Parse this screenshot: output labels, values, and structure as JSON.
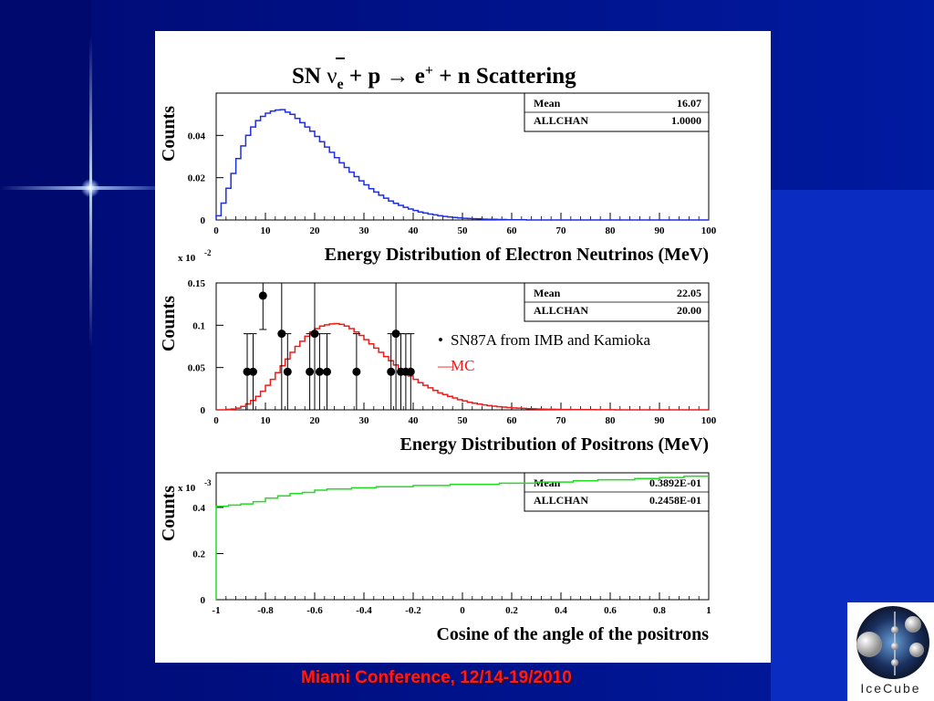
{
  "slide": {
    "footer": "Miami Conference, 12/14-19/2010",
    "logo_text": "IceCube"
  },
  "colors": {
    "background": "#000a6e",
    "footer_text": "#ff1a1a",
    "blue_hist": "#1f2fe0",
    "red_hist": "#ee1b1b",
    "green_hist": "#22dd22"
  },
  "chart_data": [
    {
      "type": "line",
      "title": "SN ν̄e + p → e+ + n Scattering",
      "xlabel": "Energy Distribution of Electron Neutrinos (MeV)",
      "ylabel": "Counts",
      "xlim": [
        0,
        100
      ],
      "ylim": [
        0,
        0.06
      ],
      "x_ticks": [
        "0",
        "10",
        "20",
        "30",
        "40",
        "50",
        "60",
        "70",
        "80",
        "90",
        "100"
      ],
      "y_ticks": [
        "0",
        "0.02",
        "0.04"
      ],
      "stats": [
        {
          "label": "Mean",
          "value": "16.07"
        },
        {
          "label": "ALLCHAN",
          "value": "1.0000"
        }
      ],
      "series": [
        {
          "style": "histogram",
          "color": "#1f2fe0",
          "bin_width": 1,
          "values": [
            0.002,
            0.008,
            0.015,
            0.022,
            0.029,
            0.035,
            0.04,
            0.044,
            0.047,
            0.049,
            0.0505,
            0.0515,
            0.052,
            0.0522,
            0.051,
            0.05,
            0.048,
            0.046,
            0.044,
            0.042,
            0.0395,
            0.037,
            0.0345,
            0.032,
            0.0295,
            0.027,
            0.0248,
            0.0226,
            0.0205,
            0.0185,
            0.0166,
            0.0148,
            0.0132,
            0.0117,
            0.0103,
            0.009,
            0.0079,
            0.0069,
            0.006,
            0.0052,
            0.0045,
            0.0038,
            0.0033,
            0.0028,
            0.0024,
            0.002,
            0.0017,
            0.0014,
            0.0012,
            0.001,
            0.0008,
            0.0007,
            0.0006,
            0.0005,
            0.0004,
            0.0003,
            0.0003,
            0.0002,
            0.0002,
            0.0001,
            0.0001,
            0.0001,
            0.0001,
            0,
            0,
            0,
            0,
            0,
            0,
            0,
            0,
            0,
            0,
            0,
            0,
            0,
            0,
            0,
            0,
            0,
            0,
            0,
            0,
            0,
            0,
            0,
            0,
            0,
            0,
            0,
            0,
            0,
            0,
            0,
            0,
            0,
            0,
            0,
            0,
            0
          ]
        }
      ]
    },
    {
      "type": "line",
      "xlabel": "Energy Distribution of Positrons (MeV)",
      "ylabel": "Counts",
      "y_multiplier": "x 10",
      "y_multiplier_exp": "-2",
      "xlim": [
        0,
        100
      ],
      "ylim": [
        0,
        0.15
      ],
      "x_ticks": [
        "0",
        "10",
        "20",
        "30",
        "40",
        "50",
        "60",
        "70",
        "80",
        "90",
        "100"
      ],
      "y_ticks": [
        "0",
        "0.05",
        "0.1",
        "0.15"
      ],
      "stats": [
        {
          "label": "Mean",
          "value": "22.05"
        },
        {
          "label": "ALLCHAN",
          "value": "20.00"
        }
      ],
      "legend": [
        {
          "marker": "•",
          "label": "SN87A from IMB and Kamioka",
          "color": "#000000"
        },
        {
          "marker": "—",
          "label": "MC",
          "color": "#ee1b1b"
        }
      ],
      "series": [
        {
          "name": "MC",
          "style": "histogram",
          "color": "#ee1b1b",
          "bin_width": 1,
          "values": [
            0,
            0,
            0.0005,
            0.001,
            0.002,
            0.004,
            0.007,
            0.011,
            0.016,
            0.022,
            0.029,
            0.036,
            0.044,
            0.052,
            0.06,
            0.068,
            0.075,
            0.081,
            0.087,
            0.092,
            0.096,
            0.099,
            0.1005,
            0.1015,
            0.102,
            0.101,
            0.099,
            0.096,
            0.092,
            0.088,
            0.083,
            0.078,
            0.073,
            0.068,
            0.063,
            0.058,
            0.053,
            0.048,
            0.044,
            0.04,
            0.036,
            0.032,
            0.029,
            0.026,
            0.023,
            0.02,
            0.018,
            0.016,
            0.014,
            0.012,
            0.0105,
            0.009,
            0.0078,
            0.0067,
            0.0058,
            0.005,
            0.0043,
            0.0037,
            0.0032,
            0.0027,
            0.0023,
            0.002,
            0.0017,
            0.0014,
            0.0012,
            0.001,
            0.0009,
            0.0007,
            0.0006,
            0.0005,
            0.0004,
            0.0004,
            0.0003,
            0.0003,
            0.0002,
            0.0002,
            0.0002,
            0.0001,
            0.0001,
            0.0001,
            0.0001,
            0,
            0,
            0,
            0,
            0,
            0,
            0,
            0,
            0,
            0,
            0,
            0,
            0,
            0,
            0,
            0,
            0,
            0,
            0
          ]
        },
        {
          "name": "SN87A from IMB and Kamioka",
          "style": "points",
          "color": "#000000",
          "points": [
            {
              "x": 6.3,
              "y": 0.045,
              "err_low": 0.045,
              "err_high": 0.045
            },
            {
              "x": 7.5,
              "y": 0.045,
              "err_low": 0.045,
              "err_high": 0.045
            },
            {
              "x": 9.5,
              "y": 0.135,
              "err_low": 0.04,
              "err_high": 0.04
            },
            {
              "x": 13.3,
              "y": 0.09,
              "err_low": 0.09,
              "err_high": 0.09
            },
            {
              "x": 14.5,
              "y": 0.045,
              "err_low": 0.045,
              "err_high": 0.045
            },
            {
              "x": 19.0,
              "y": 0.045,
              "err_low": 0.045,
              "err_high": 0.045
            },
            {
              "x": 20.0,
              "y": 0.09,
              "err_low": 0.09,
              "err_high": 0.09
            },
            {
              "x": 21.0,
              "y": 0.045,
              "err_low": 0.045,
              "err_high": 0.045
            },
            {
              "x": 22.5,
              "y": 0.045,
              "err_low": 0.045,
              "err_high": 0.045
            },
            {
              "x": 28.5,
              "y": 0.045,
              "err_low": 0.045,
              "err_high": 0.045
            },
            {
              "x": 35.5,
              "y": 0.045,
              "err_low": 0.045,
              "err_high": 0.045
            },
            {
              "x": 36.5,
              "y": 0.09,
              "err_low": 0.09,
              "err_high": 0.09
            },
            {
              "x": 37.5,
              "y": 0.045,
              "err_low": 0.045,
              "err_high": 0.045
            },
            {
              "x": 38.5,
              "y": 0.045,
              "err_low": 0.045,
              "err_high": 0.045
            },
            {
              "x": 39.5,
              "y": 0.045,
              "err_low": 0.045,
              "err_high": 0.045
            }
          ]
        }
      ]
    },
    {
      "type": "line",
      "xlabel": "Cosine of the angle of the positrons",
      "ylabel": "Counts",
      "y_multiplier": "x 10",
      "y_multiplier_exp": "-3",
      "xlim": [
        -1,
        1
      ],
      "ylim": [
        0,
        0.55
      ],
      "x_ticks": [
        "-1",
        "-0.8",
        "-0.6",
        "-0.4",
        "-0.2",
        "0",
        "0.2",
        "0.4",
        "0.6",
        "0.8",
        "1"
      ],
      "y_ticks": [
        "0",
        "0.2",
        "0.4"
      ],
      "stats": [
        {
          "label": "Mean",
          "value": "0.3892E-01"
        },
        {
          "label": "ALLCHAN",
          "value": "0.2458E-01"
        }
      ],
      "series": [
        {
          "style": "histogram",
          "color": "#22dd22",
          "bin_width": 0.05,
          "values": [
            0.405,
            0.41,
            0.415,
            0.425,
            0.44,
            0.45,
            0.46,
            0.465,
            0.475,
            0.48,
            0.48,
            0.485,
            0.485,
            0.49,
            0.49,
            0.49,
            0.495,
            0.495,
            0.495,
            0.5,
            0.5,
            0.5,
            0.5,
            0.505,
            0.505,
            0.505,
            0.51,
            0.51,
            0.51,
            0.515,
            0.515,
            0.52,
            0.52,
            0.52,
            0.525,
            0.525,
            0.53,
            0.53,
            0.535,
            0.535
          ]
        }
      ]
    }
  ]
}
